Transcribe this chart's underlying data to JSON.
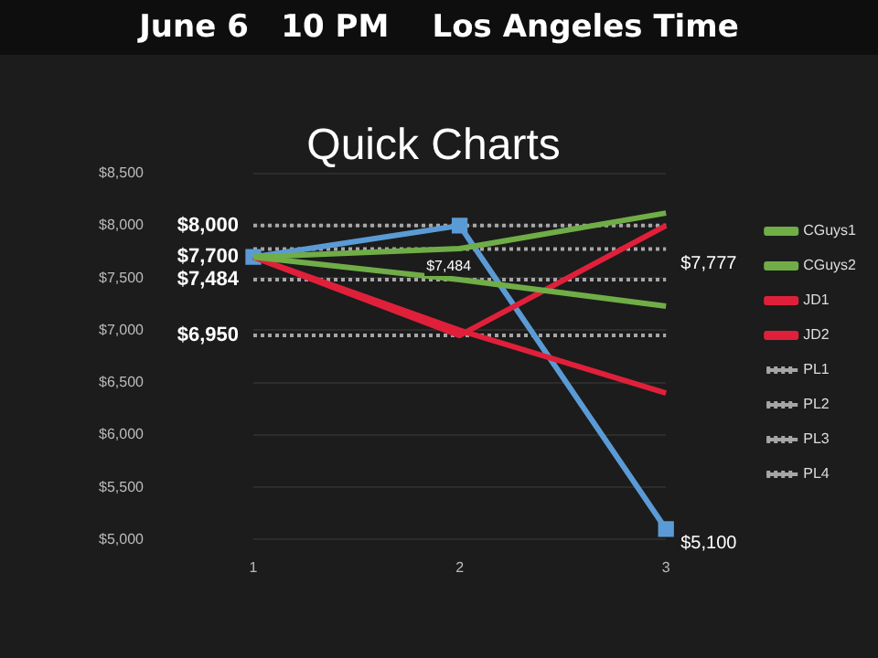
{
  "chart_data": {
    "type": "line",
    "subtitle": "June 6   10 PM    Los Angeles Time",
    "title": "Quick Charts",
    "categories": [
      "1",
      "2",
      "3"
    ],
    "series": [
      {
        "name": "CGuys1",
        "color": "#70ad47",
        "values": [
          7700,
          7780,
          8120
        ]
      },
      {
        "name": "CGuys2",
        "color": "#70ad47",
        "values": [
          7700,
          7484,
          7230
        ]
      },
      {
        "name": "JD1",
        "color": "#e0203a",
        "values": [
          7700,
          6950,
          8000
        ]
      },
      {
        "name": "JD2",
        "color": "#e0203a",
        "values": [
          7700,
          7000,
          6400
        ]
      },
      {
        "color": "#4472c4",
        "values": [
          null,
          null,
          null
        ]
      },
      {
        "color": "#5b9bd5",
        "values": [
          7700,
          8000,
          5100
        ],
        "marker": "square"
      },
      {
        "name": "PL1",
        "color": "#a6a6a6",
        "values": [
          8000,
          8000,
          8000
        ],
        "line_style": "dotted"
      },
      {
        "name": "PL2",
        "color": "#a6a6a6",
        "values": [
          7777,
          7777,
          7777
        ],
        "line_style": "dotted"
      },
      {
        "name": "PL3",
        "color": "#a6a6a6",
        "values": [
          7484,
          7484,
          7484
        ],
        "line_style": "dotted"
      },
      {
        "name": "PL4",
        "color": "#a6a6a6",
        "values": [
          6950,
          6950,
          6950
        ],
        "line_style": "dotted"
      }
    ],
    "ylim": [
      5000,
      8500
    ],
    "yticks": [
      {
        "value": 5000,
        "label": "$5,000"
      },
      {
        "value": 5500,
        "label": "$5,500"
      },
      {
        "value": 6000,
        "label": "$6,000"
      },
      {
        "value": 6500,
        "label": "$6,500"
      },
      {
        "value": 7000,
        "label": "$7,000"
      },
      {
        "value": 7500,
        "label": "$7,500"
      },
      {
        "value": 8000,
        "label": "$8,000"
      },
      {
        "value": 8500,
        "label": "$8,500"
      }
    ],
    "grid": "y",
    "legend": "right",
    "marker": "none",
    "line_style": "solid",
    "annotations": [
      {
        "text": "$8,000",
        "x": "1",
        "y": 8000
      },
      {
        "text": "$7,700",
        "x": "1",
        "y": 7700
      },
      {
        "text": "$7,484",
        "x": "1",
        "y": 7484
      },
      {
        "text": "$6,950",
        "x": "1",
        "y": 6950
      },
      {
        "text": "$7,484",
        "x": "2",
        "y": 7484
      },
      {
        "text": "$7,777",
        "x": "3",
        "y": 7777
      },
      {
        "text": "$5,100",
        "x": "3",
        "y": 5100
      }
    ]
  }
}
